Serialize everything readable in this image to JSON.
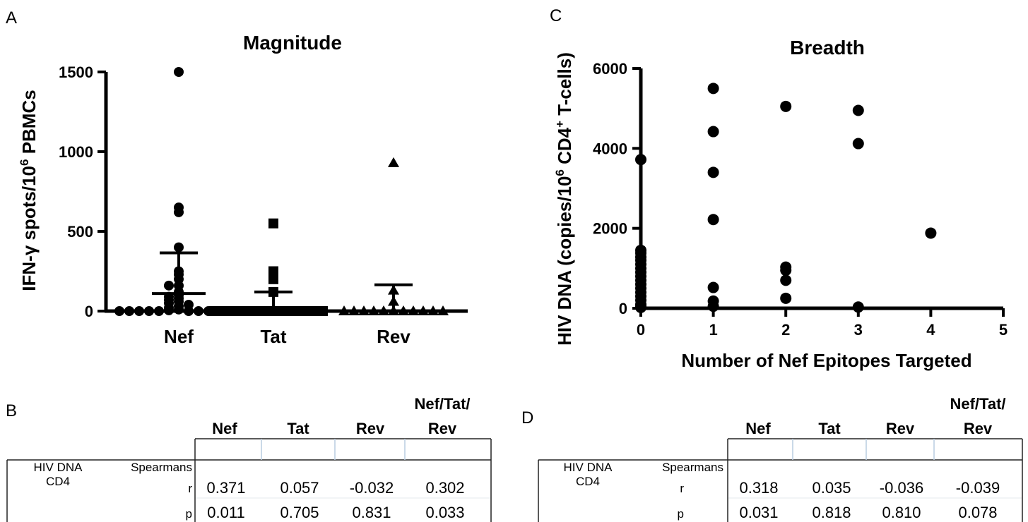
{
  "panels": {
    "a": "A",
    "b": "B",
    "c": "C",
    "d": "D"
  },
  "chart_data": [
    {
      "type": "scatter",
      "title": "Magnitude",
      "ylabel_main": "IFN-γ spots/10",
      "ylabel_sup": "6",
      "ylabel_end": " PBMCs",
      "categories": [
        "Nef",
        "Tat",
        "Rev"
      ],
      "ylim": [
        0,
        1500
      ],
      "yticks": [
        "0",
        "500",
        "1000",
        "1500"
      ],
      "ytick_values": [
        0,
        500,
        1000,
        1500
      ],
      "series": [
        {
          "category": "Nef",
          "marker": "circle",
          "values": [
            1500,
            650,
            620,
            400,
            250,
            230,
            200,
            160,
            160,
            120,
            100,
            90,
            80,
            70,
            60,
            50,
            40,
            30,
            20,
            10,
            5,
            0,
            0,
            0,
            0,
            0,
            0,
            0,
            0,
            0,
            0,
            0
          ],
          "mean": 110,
          "error_upper": 365
        },
        {
          "category": "Tat",
          "marker": "square",
          "values": [
            550,
            250,
            200,
            120,
            0,
            0,
            0,
            0,
            0,
            0,
            0,
            0,
            0,
            0,
            0,
            0
          ],
          "mean": 0,
          "error_upper": 120
        },
        {
          "category": "Rev",
          "marker": "triangle",
          "values": [
            930,
            130,
            60,
            0,
            0,
            0,
            0,
            0,
            0,
            0,
            0,
            0,
            0,
            0
          ],
          "mean": 0,
          "error_upper": 165
        }
      ]
    },
    {
      "type": "scatter",
      "title": "Breadth",
      "xlabel": "Number of Nef Epitopes Targeted",
      "ylabel_main": "HIV DNA (copies/10",
      "ylabel_sup1": "6",
      "ylabel_mid": " CD4",
      "ylabel_sup2": "+",
      "ylabel_end": " T-cells)",
      "xlim": [
        0,
        5
      ],
      "ylim": [
        0,
        6000
      ],
      "xticks": [
        "0",
        "1",
        "2",
        "3",
        "4",
        "5"
      ],
      "xtick_values": [
        0,
        1,
        2,
        3,
        4,
        5
      ],
      "yticks": [
        "0",
        "2000",
        "4000",
        "6000"
      ],
      "ytick_values": [
        0,
        2000,
        4000,
        6000
      ],
      "points": [
        [
          0,
          3720
        ],
        [
          0,
          1450
        ],
        [
          0,
          1380
        ],
        [
          0,
          1280
        ],
        [
          0,
          1200
        ],
        [
          0,
          1100
        ],
        [
          0,
          1000
        ],
        [
          0,
          900
        ],
        [
          0,
          800
        ],
        [
          0,
          700
        ],
        [
          0,
          600
        ],
        [
          0,
          500
        ],
        [
          0,
          400
        ],
        [
          0,
          300
        ],
        [
          0,
          200
        ],
        [
          0,
          100
        ],
        [
          0,
          50
        ],
        [
          0,
          20
        ],
        [
          1,
          5500
        ],
        [
          1,
          4420
        ],
        [
          1,
          3400
        ],
        [
          1,
          2220
        ],
        [
          1,
          520
        ],
        [
          1,
          180
        ],
        [
          1,
          50
        ],
        [
          2,
          5050
        ],
        [
          2,
          1030
        ],
        [
          2,
          950
        ],
        [
          2,
          700
        ],
        [
          2,
          250
        ],
        [
          3,
          4950
        ],
        [
          3,
          4120
        ],
        [
          3,
          30
        ],
        [
          4,
          1880
        ]
      ]
    }
  ],
  "table_b": {
    "headers": [
      "Nef",
      "Tat",
      "Rev",
      "Nef/Tat/\nRev"
    ],
    "header_top": "Nef/Tat/",
    "header_bottom": "Rev",
    "row_label_1": "HIV DNA",
    "row_label_2": "CD4",
    "stat_label_1": "Spearmans",
    "stat_r": "r",
    "stat_p": "p",
    "r": [
      "0.371",
      "0.057",
      "-0.032",
      "0.302"
    ],
    "p": [
      "0.011",
      "0.705",
      "0.831",
      "0.033"
    ]
  },
  "table_d": {
    "header_top": "Nef/Tat/",
    "header_bottom": "Rev",
    "headers": [
      "Nef",
      "Tat",
      "Rev"
    ],
    "row_label_1": "HIV DNA",
    "row_label_2": "CD4",
    "stat_label_1": "Spearmans",
    "stat_r": "r",
    "stat_p": "p",
    "r": [
      "0.318",
      "0.035",
      "-0.036",
      "-0.039"
    ],
    "p": [
      "0.031",
      "0.818",
      "0.810",
      "0.078"
    ]
  }
}
